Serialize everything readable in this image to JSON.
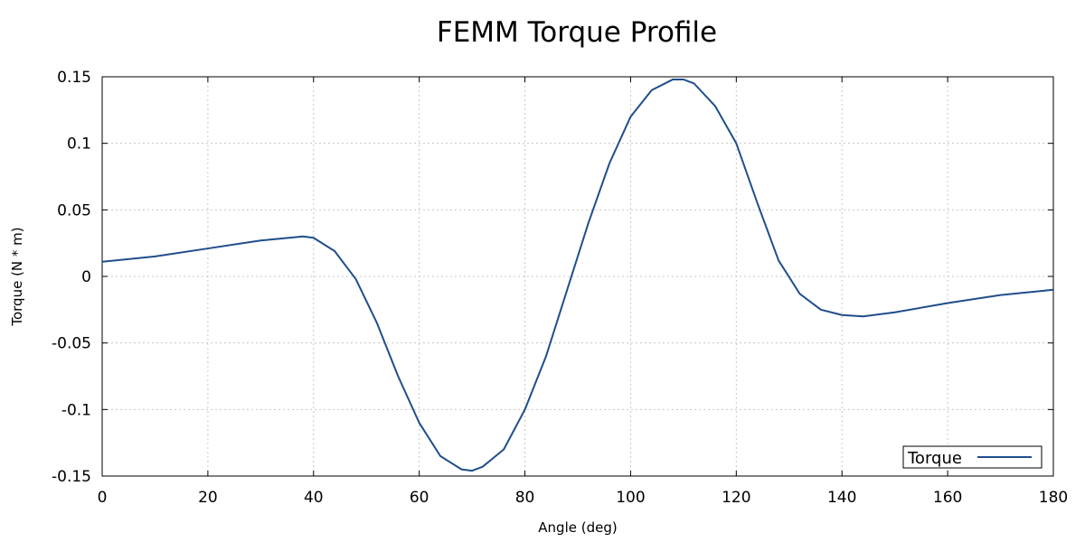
{
  "chart_data": {
    "type": "line",
    "title": "FEMM Torque Profile",
    "xlabel": "Angle (deg)",
    "ylabel": "Torque (N * m)",
    "xlim": [
      0,
      180
    ],
    "ylim": [
      -0.15,
      0.15
    ],
    "xticks": [
      0,
      20,
      40,
      60,
      80,
      100,
      120,
      140,
      160,
      180
    ],
    "xtick_labels": [
      "0",
      "20",
      "40",
      "60",
      "80",
      "100",
      "120",
      "140",
      "160",
      "180"
    ],
    "yticks": [
      -0.15,
      -0.1,
      -0.05,
      0,
      0.05,
      0.1,
      0.15
    ],
    "ytick_labels": [
      "-0.15",
      "-0.1",
      "-0.05",
      "0",
      "0.05",
      "0.1",
      "0.15"
    ],
    "grid": true,
    "legend_position": "bottom-right",
    "series": [
      {
        "name": "Torque",
        "color": "#1f4e8c",
        "x": [
          0,
          10,
          20,
          30,
          38,
          40,
          44,
          48,
          52,
          56,
          60,
          64,
          68,
          70,
          72,
          76,
          80,
          84,
          88,
          92,
          96,
          100,
          104,
          108,
          110,
          112,
          116,
          120,
          124,
          128,
          132,
          136,
          140,
          144,
          150,
          160,
          170,
          180
        ],
        "y": [
          0.011,
          0.015,
          0.021,
          0.027,
          0.03,
          0.029,
          0.019,
          -0.002,
          -0.035,
          -0.075,
          -0.11,
          -0.135,
          -0.145,
          -0.146,
          -0.143,
          -0.13,
          -0.1,
          -0.06,
          -0.01,
          0.04,
          0.085,
          0.12,
          0.14,
          0.148,
          0.148,
          0.145,
          0.128,
          0.1,
          0.055,
          0.012,
          -0.013,
          -0.025,
          -0.029,
          -0.03,
          -0.027,
          -0.02,
          -0.014,
          -0.01
        ]
      }
    ]
  }
}
